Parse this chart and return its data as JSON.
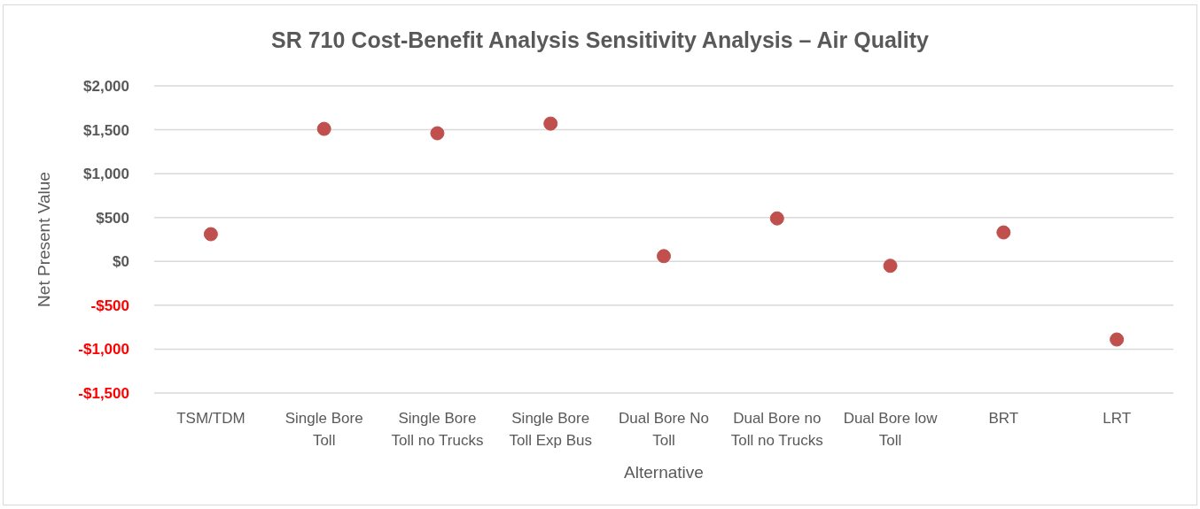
{
  "chart_data": {
    "type": "scatter",
    "title": "SR 710 Cost-Benefit Analysis Sensitivity Analysis – Air Quality",
    "xlabel": "Alternative",
    "ylabel": "Net Present Value",
    "categories": [
      "TSM/TDM",
      "Single Bore Toll",
      "Single Bore Toll no Trucks",
      "Single Bore Toll  Exp Bus",
      "Dual Bore No Toll",
      "Dual Bore no Toll no Trucks",
      "Dual Bore low Toll",
      "BRT",
      "LRT"
    ],
    "series": [
      {
        "color": "#c0504d",
        "values": [
          310,
          1510,
          1460,
          1570,
          60,
          490,
          -50,
          330,
          -890
        ]
      }
    ],
    "ylim": [
      -1500,
      2000
    ],
    "yticks": [
      {
        "value": -1500,
        "label": "-$1,500"
      },
      {
        "value": -1000,
        "label": "-$1,000"
      },
      {
        "value": -500,
        "label": "-$500"
      },
      {
        "value": 0,
        "label": "$0"
      },
      {
        "value": 500,
        "label": "$500"
      },
      {
        "value": 1000,
        "label": "$1,000"
      },
      {
        "value": 1500,
        "label": "$1,500"
      },
      {
        "value": 2000,
        "label": "$2,000"
      }
    ],
    "grid": "y",
    "marker": "circle"
  }
}
